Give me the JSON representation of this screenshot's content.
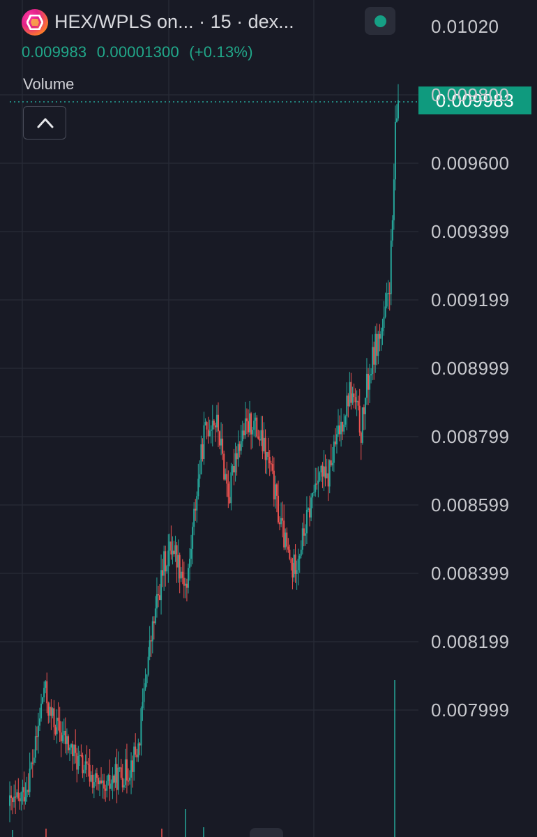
{
  "header": {
    "title": "HEX/WPLS on...  · 15 · dex...",
    "ohlc": {
      "price": "0.009983",
      "change": "0.00001300",
      "change_pct": "(+0.13%)"
    },
    "status_color": "#16a085"
  },
  "volume_label": "Volume",
  "current_price": "0.009983",
  "colors": {
    "up": "#26a69a",
    "down": "#ef5350",
    "background": "#181a25",
    "grid": "#262935"
  },
  "icons": {
    "logo": "hex-logo-icon",
    "status": "status-dot-icon",
    "collapse": "chevron-up-icon"
  },
  "chart_data": {
    "type": "candlestick",
    "title": "HEX/WPLS on... · 15 · dex...",
    "interval": "15",
    "ylim": [
      0.0078,
      0.0103
    ],
    "y_ticks": [
      "0.01020",
      "0.009800",
      "0.009600",
      "0.009399",
      "0.009199",
      "0.008999",
      "0.008799",
      "0.008599",
      "0.008399",
      "0.008199",
      "0.007999"
    ],
    "last_price": 0.009983,
    "price_path": [
      [
        0,
        0.00791
      ],
      [
        6,
        0.00792
      ],
      [
        12,
        0.00797
      ],
      [
        18,
        0.00808
      ],
      [
        24,
        0.00826
      ],
      [
        28,
        0.00818
      ],
      [
        36,
        0.00812
      ],
      [
        48,
        0.00804
      ],
      [
        60,
        0.00798
      ],
      [
        66,
        0.00794
      ],
      [
        72,
        0.00799
      ],
      [
        82,
        0.00801
      ],
      [
        90,
        0.00808
      ],
      [
        96,
        0.00832
      ],
      [
        102,
        0.00848
      ],
      [
        108,
        0.00862
      ],
      [
        114,
        0.00868
      ],
      [
        118,
        0.00863
      ],
      [
        124,
        0.00855
      ],
      [
        130,
        0.0088
      ],
      [
        136,
        0.009
      ],
      [
        142,
        0.00905
      ],
      [
        146,
        0.00902
      ],
      [
        150,
        0.0089
      ],
      [
        154,
        0.00882
      ],
      [
        158,
        0.00895
      ],
      [
        164,
        0.00901
      ],
      [
        170,
        0.00904
      ],
      [
        176,
        0.00898
      ],
      [
        182,
        0.00891
      ],
      [
        188,
        0.00877
      ],
      [
        194,
        0.00866
      ],
      [
        198,
        0.0086
      ],
      [
        204,
        0.00868
      ],
      [
        210,
        0.00878
      ],
      [
        216,
        0.0089
      ],
      [
        222,
        0.00886
      ],
      [
        228,
        0.00897
      ],
      [
        234,
        0.00906
      ],
      [
        238,
        0.00913
      ],
      [
        242,
        0.00909
      ],
      [
        246,
        0.00901
      ],
      [
        250,
        0.00914
      ],
      [
        256,
        0.00926
      ],
      [
        262,
        0.00932
      ],
      [
        266,
        0.00945
      ],
      [
        268,
        0.00962
      ],
      [
        270,
        0.00988
      ],
      [
        272,
        0.00998
      ]
    ]
  }
}
